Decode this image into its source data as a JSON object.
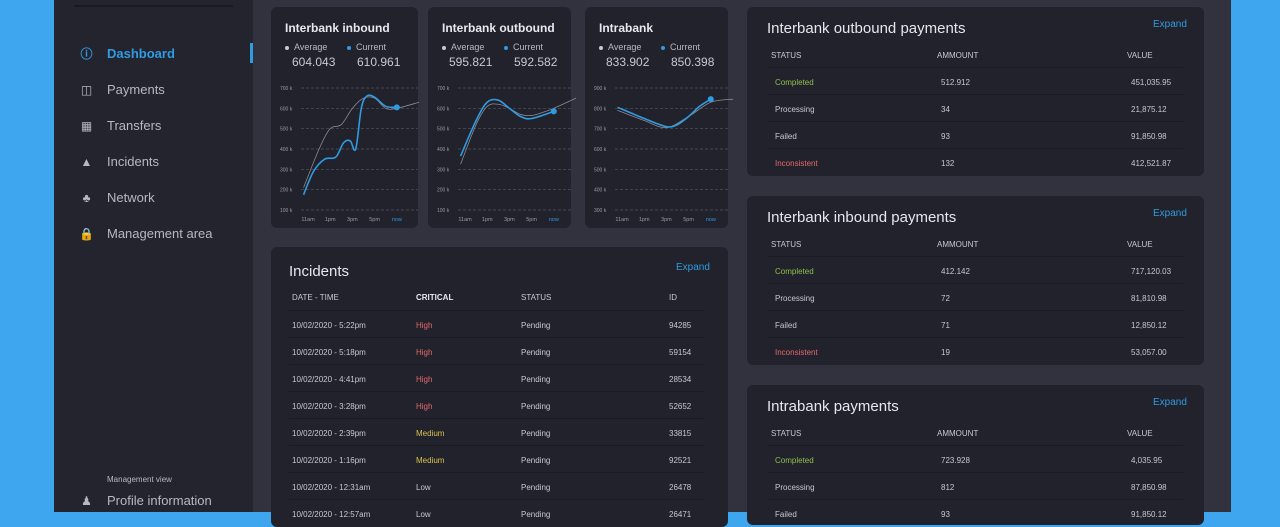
{
  "sidebar": {
    "items": [
      {
        "label": "Dashboard",
        "icon": "info-circle-icon",
        "active": true
      },
      {
        "label": "Payments",
        "icon": "dashboard-layout-icon"
      },
      {
        "label": "Transfers",
        "icon": "grid-icon"
      },
      {
        "label": "Incidents",
        "icon": "warning-icon"
      },
      {
        "label": "Network",
        "icon": "network-icon"
      },
      {
        "label": "Management area",
        "icon": "lock-icon"
      }
    ],
    "section_label": "Management view",
    "profile": {
      "label": "Profile information",
      "icon": "user-icon"
    }
  },
  "colors": {
    "accent": "#2f9be0",
    "average": "#8a8a96",
    "completed": "#8fbf4a",
    "high": "#e26a6a",
    "medium": "#d8c34e"
  },
  "legend": {
    "average": "Average",
    "current": "Current"
  },
  "chart_data": [
    {
      "type": "line",
      "title": "Interbank inbound",
      "average": "604.043",
      "current": "610.961",
      "yticks": [
        "100 k",
        "200 k",
        "300 k",
        "400 k",
        "500 k",
        "600 k",
        "700 k"
      ],
      "ylim": [
        100,
        700
      ],
      "xticks": [
        "11am",
        "1pm",
        "3pm",
        "5pm",
        "now"
      ],
      "series": [
        {
          "name": "Average",
          "x": [
            "10:36",
            "12:00",
            "13:00",
            "14:00",
            "15:00",
            "16:00",
            "17:00",
            "18:00",
            "now",
            "later"
          ],
          "values": [
            210,
            400,
            500,
            520,
            600,
            650,
            650,
            600,
            600,
            630
          ]
        },
        {
          "name": "Current",
          "x": [
            "10:36",
            "11:30",
            "12:30",
            "13:30",
            "14:12",
            "14:48",
            "15:18",
            "15:48",
            "16:18",
            "17:00",
            "18:00",
            "now"
          ],
          "values": [
            175,
            290,
            350,
            360,
            430,
            440,
            400,
            600,
            660,
            655,
            610,
            605
          ]
        }
      ]
    },
    {
      "type": "line",
      "title": "Interbank outbound",
      "average": "595.821",
      "current": "592.582",
      "yticks": [
        "100 k",
        "200 k",
        "300 k",
        "400 k",
        "500 k",
        "600 k",
        "700 k"
      ],
      "ylim": [
        100,
        700
      ],
      "xticks": [
        "11am",
        "1pm",
        "3pm",
        "5pm",
        "now"
      ],
      "series": [
        {
          "name": "Average",
          "x": [
            "10:36",
            "12:00",
            "13:00",
            "14:00",
            "15:00",
            "16:00",
            "17:00",
            "18:00",
            "now",
            "later"
          ],
          "values": [
            325,
            520,
            610,
            620,
            600,
            570,
            565,
            580,
            600,
            650
          ]
        },
        {
          "name": "Current",
          "x": [
            "10:36",
            "12:00",
            "13:00",
            "14:00",
            "15:00",
            "16:00",
            "17:00",
            "now"
          ],
          "values": [
            365,
            540,
            630,
            640,
            600,
            560,
            550,
            585
          ]
        }
      ]
    },
    {
      "type": "line",
      "title": "Intrabank",
      "average": "833.902",
      "current": "850.398",
      "yticks": [
        "300 k",
        "400 k",
        "500 k",
        "600 k",
        "700 k",
        "800 k",
        "900 k"
      ],
      "ylim": [
        300,
        900
      ],
      "xticks": [
        "11am",
        "1pm",
        "3pm",
        "5pm",
        "now"
      ],
      "series": [
        {
          "name": "Average",
          "x": [
            "10:36",
            "13:00",
            "15:00",
            "17:00",
            "now",
            "later"
          ],
          "values": [
            790,
            740,
            705,
            760,
            830,
            845
          ]
        },
        {
          "name": "Current",
          "x": [
            "10:36",
            "13:00",
            "15:00",
            "16:00",
            "17:00",
            "18:00",
            "now"
          ],
          "values": [
            805,
            750,
            710,
            720,
            760,
            810,
            845
          ]
        }
      ]
    }
  ],
  "incidents": {
    "title": "Incidents",
    "expand": "Expand",
    "columns": [
      "DATE - TIME",
      "CRITICAL",
      "STATUS",
      "ID"
    ],
    "rows": [
      [
        "10/02/2020 - 5:22pm",
        "High",
        "Pending",
        "94285"
      ],
      [
        "10/02/2020 - 5:18pm",
        "High",
        "Pending",
        "59154"
      ],
      [
        "10/02/2020 - 4:41pm",
        "High",
        "Pending",
        "28534"
      ],
      [
        "10/02/2020 - 3:28pm",
        "High",
        "Pending",
        "52652"
      ],
      [
        "10/02/2020 - 2:39pm",
        "Medium",
        "Pending",
        "33815"
      ],
      [
        "10/02/2020 - 1:16pm",
        "Medium",
        "Pending",
        "92521"
      ],
      [
        "10/02/2020 - 12:31am",
        "Low",
        "Pending",
        "26478"
      ],
      [
        "10/02/2020 - 12:57am",
        "Low",
        "Pending",
        "26471"
      ]
    ]
  },
  "payments": [
    {
      "title": "Interbank outbound payments",
      "expand": "Expand",
      "columns": [
        "STATUS",
        "AMMOUNT",
        "VALUE"
      ],
      "rows": [
        [
          "Completed",
          "512.912",
          "451,035.95"
        ],
        [
          "Processing",
          "34",
          "21,875.12"
        ],
        [
          "Failed",
          "93",
          "91,850.98"
        ],
        [
          "Inconsistent",
          "132",
          "412,521.87"
        ]
      ]
    },
    {
      "title": "Interbank inbound payments",
      "expand": "Expand",
      "columns": [
        "STATUS",
        "AMMOUNT",
        "VALUE"
      ],
      "rows": [
        [
          "Completed",
          "412.142",
          "717,120.03"
        ],
        [
          "Processing",
          "72",
          "81,810.98"
        ],
        [
          "Failed",
          "71",
          "12,850.12"
        ],
        [
          "Inconsistent",
          "19",
          "53,057.00"
        ]
      ]
    },
    {
      "title": "Intrabank payments",
      "expand": "Expand",
      "columns": [
        "STATUS",
        "AMMOUNT",
        "VALUE"
      ],
      "rows": [
        [
          "Completed",
          "723.928",
          "4,035.95"
        ],
        [
          "Processing",
          "812",
          "87,850.98"
        ],
        [
          "Failed",
          "93",
          "91,850.12"
        ]
      ]
    }
  ]
}
